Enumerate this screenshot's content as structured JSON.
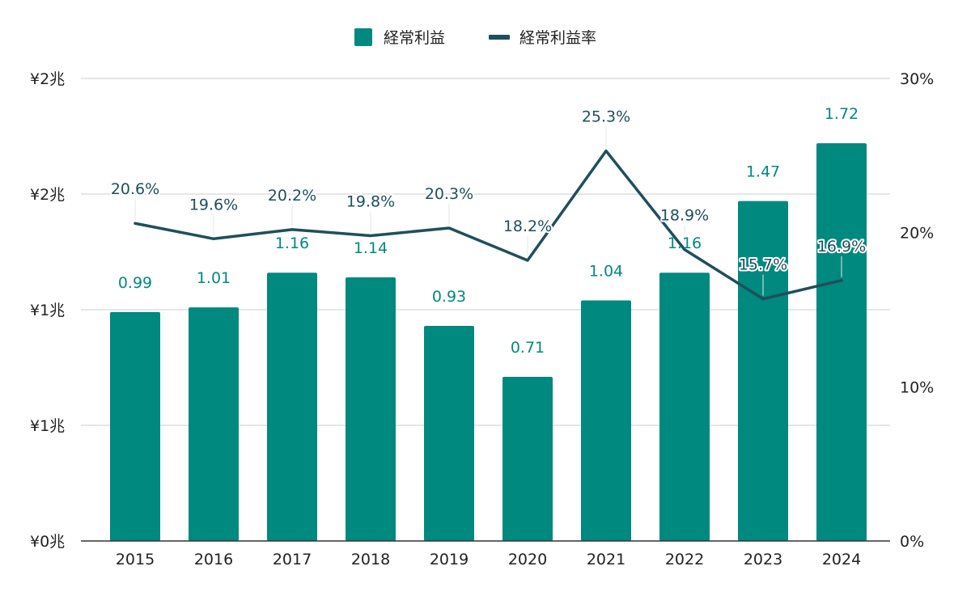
{
  "chart_data": {
    "type": "bar",
    "categories": [
      "2015",
      "2016",
      "2017",
      "2018",
      "2019",
      "2020",
      "2021",
      "2022",
      "2023",
      "2024"
    ],
    "series": [
      {
        "name": "経常利益",
        "type": "bar",
        "axis": "left",
        "color": "#00897f",
        "values": [
          0.99,
          1.01,
          1.16,
          1.14,
          0.93,
          0.71,
          1.04,
          1.16,
          1.47,
          1.72
        ],
        "labels": [
          "0.99",
          "1.01",
          "1.16",
          "1.14",
          "0.93",
          "0.71",
          "1.04",
          "1.16",
          "1.47",
          "1.72"
        ]
      },
      {
        "name": "経常利益率",
        "type": "line",
        "axis": "right",
        "color": "#1f4f5c",
        "values": [
          20.6,
          19.6,
          20.2,
          19.8,
          20.3,
          18.2,
          25.3,
          18.9,
          15.7,
          16.9
        ],
        "labels": [
          "20.6%",
          "19.6%",
          "20.2%",
          "19.8%",
          "20.3%",
          "18.2%",
          "25.3%",
          "18.9%",
          "15.7%",
          "16.9%"
        ]
      }
    ],
    "y_left": {
      "ylim": [
        0,
        2.0
      ],
      "ticks": [
        0,
        0.5,
        1.0,
        1.5,
        2.0
      ],
      "tick_labels": [
        "¥0兆",
        "¥1兆",
        "¥1兆",
        "¥2兆",
        "¥2兆"
      ]
    },
    "y_right": {
      "ylim": [
        0,
        30
      ],
      "ticks": [
        0,
        10,
        20,
        30
      ],
      "tick_labels": [
        "0%",
        "10%",
        "20%",
        "30%"
      ]
    },
    "legend": "top-center",
    "grid": true
  }
}
